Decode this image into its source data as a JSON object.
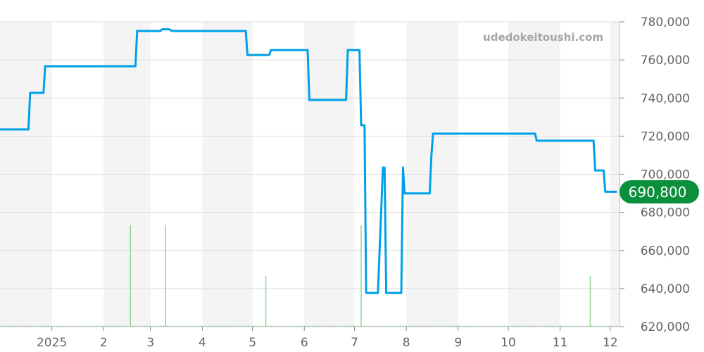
{
  "chart_data": {
    "type": "line",
    "watermark": "udedokeitoushi.com",
    "current_price_label": "690,800",
    "colors": {
      "line": "#00a0e9",
      "volume": "#8fd694",
      "badge": "#0a8f3c",
      "band": "#f4f4f4",
      "grid": "#dddddd"
    },
    "grid": true,
    "ylim": [
      620000,
      780000
    ],
    "y_ticks": [
      620000,
      640000,
      660000,
      680000,
      700000,
      720000,
      740000,
      760000,
      780000
    ],
    "y_tick_labels": [
      "620,000",
      "640,000",
      "660,000",
      "680,000",
      "700,000",
      "720,000",
      "740,000",
      "760,000",
      "780,000"
    ],
    "xlim": [
      "2024-12-01",
      "2025-12-05"
    ],
    "x_ticks": [
      "2025-01-01",
      "2025-02-01",
      "2025-03-01",
      "2025-04-01",
      "2025-05-01",
      "2025-06-01",
      "2025-07-01",
      "2025-08-01",
      "2025-09-01",
      "2025-10-01",
      "2025-11-01",
      "2025-12-01"
    ],
    "x_tick_labels": [
      "2025",
      "2",
      "3",
      "4",
      "5",
      "6",
      "7",
      "8",
      "9",
      "10",
      "11",
      "12"
    ],
    "series": [
      {
        "points": [
          [
            "2024-12-01",
            723500
          ],
          [
            "2024-12-18",
            723500
          ],
          [
            "2024-12-19",
            742700
          ],
          [
            "2024-12-27",
            742700
          ],
          [
            "2024-12-28",
            756700
          ],
          [
            "2025-02-20",
            756700
          ],
          [
            "2025-02-21",
            775200
          ],
          [
            "2025-03-07",
            775200
          ],
          [
            "2025-03-08",
            776100
          ],
          [
            "2025-03-12",
            776100
          ],
          [
            "2025-03-14",
            775200
          ],
          [
            "2025-04-27",
            775200
          ],
          [
            "2025-04-28",
            762600
          ],
          [
            "2025-05-11",
            762600
          ],
          [
            "2025-05-12",
            765200
          ],
          [
            "2025-06-03",
            765200
          ],
          [
            "2025-06-04",
            739000
          ],
          [
            "2025-06-26",
            739000
          ],
          [
            "2025-06-27",
            765200
          ],
          [
            "2025-07-04",
            765200
          ],
          [
            "2025-07-05",
            725700
          ],
          [
            "2025-07-07",
            725700
          ],
          [
            "2025-07-08",
            637700
          ],
          [
            "2025-07-15",
            637700
          ],
          [
            "2025-07-18",
            703500
          ],
          [
            "2025-07-19",
            703500
          ],
          [
            "2025-07-20",
            637700
          ],
          [
            "2025-07-29",
            637700
          ],
          [
            "2025-07-30",
            703500
          ],
          [
            "2025-07-31",
            689900
          ],
          [
            "2025-08-15",
            689900
          ],
          [
            "2025-08-16",
            710000
          ],
          [
            "2025-08-17",
            721300
          ],
          [
            "2025-10-17",
            721300
          ],
          [
            "2025-10-18",
            717600
          ],
          [
            "2025-11-21",
            717600
          ],
          [
            "2025-11-22",
            702000
          ],
          [
            "2025-11-27",
            702000
          ],
          [
            "2025-11-28",
            690800
          ],
          [
            "2025-12-05",
            690800
          ]
        ]
      }
    ],
    "volume": [
      [
        "2025-02-17",
        2
      ],
      [
        "2025-03-10",
        2
      ],
      [
        "2025-05-09",
        1
      ],
      [
        "2025-07-05",
        2
      ],
      [
        "2025-11-19",
        1
      ]
    ]
  }
}
